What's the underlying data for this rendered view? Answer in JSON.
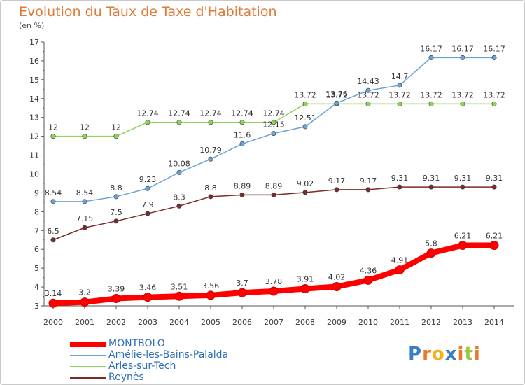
{
  "title": "Evolution du Taux de Taxe d'Habitation",
  "subtitle": "(en %)",
  "chart_data": {
    "type": "line",
    "x": [
      "2000",
      "2001",
      "2002",
      "2003",
      "2004",
      "2005",
      "2006",
      "2007",
      "2008",
      "2009",
      "2010",
      "2011",
      "2012",
      "2013",
      "2014"
    ],
    "ylim": [
      3,
      17
    ],
    "yticks": [
      3,
      4,
      5,
      6,
      7,
      8,
      9,
      10,
      11,
      12,
      13,
      14,
      15,
      16,
      17
    ],
    "grid": false,
    "legend_position": "bottom-left",
    "series": [
      {
        "name": "MONTBOLO",
        "color": "#ff0000",
        "values": [
          3.14,
          3.2,
          3.39,
          3.46,
          3.51,
          3.56,
          3.7,
          3.78,
          3.91,
          4.02,
          4.36,
          4.91,
          5.8,
          6.21,
          6.21
        ],
        "labels": [
          "3.14",
          "3.2",
          "3.39",
          "3.46",
          "3.51",
          "3.56",
          "3.7",
          "3.78",
          "3.91",
          "4.02",
          "4.36",
          "4.91",
          "5.8",
          "6.21",
          "6.21"
        ]
      },
      {
        "name": "Amélie-les-Bains-Palalda",
        "color": "#6aa3d5",
        "values": [
          8.54,
          8.54,
          8.8,
          9.23,
          10.08,
          10.79,
          11.6,
          12.15,
          12.51,
          13.76,
          14.43,
          14.7,
          16.17,
          16.17,
          16.17
        ],
        "labels": [
          "8.54",
          "8.54",
          "8.8",
          "9.23",
          "10.08",
          "10.79",
          "11.6",
          "12.15",
          "12.51",
          "13.76",
          "14.43",
          "14.7",
          "16.17",
          "16.17",
          "16.17"
        ]
      },
      {
        "name": "Arles-sur-Tech",
        "color": "#8fd35a",
        "values": [
          12,
          12,
          12,
          12.74,
          12.74,
          12.74,
          12.74,
          12.74,
          13.72,
          13.72,
          13.72,
          13.72,
          13.72,
          13.72,
          13.72
        ],
        "labels": [
          "12",
          "12",
          "12",
          "12.74",
          "12.74",
          "12.74",
          "12.74",
          "12.74",
          "13.72",
          "13.72",
          "13.72",
          "13.72",
          "13.72",
          "13.72",
          "13.72"
        ]
      },
      {
        "name": "Reynès",
        "color": "#7a2b2b",
        "values": [
          6.5,
          7.15,
          7.5,
          7.9,
          8.3,
          8.8,
          8.89,
          8.89,
          9.02,
          9.17,
          9.17,
          9.31,
          9.31,
          9.31,
          9.31
        ],
        "labels": [
          "6.5",
          "7.15",
          "7.5",
          "7.9",
          "8.3",
          "8.8",
          "8.89",
          "8.89",
          "9.02",
          "9.17",
          "9.17",
          "9.31",
          "9.31",
          "9.31",
          "9.31"
        ]
      }
    ]
  },
  "legend": {
    "items": [
      {
        "name": "MONTBOLO",
        "color": "#ff0000"
      },
      {
        "name": "Amélie-les-Bains-Palalda",
        "color": "#6aa3d5"
      },
      {
        "name": "Arles-sur-Tech",
        "color": "#8fd35a"
      },
      {
        "name": "Reynès",
        "color": "#7a2b2b"
      }
    ]
  },
  "logo": {
    "letters": [
      "P",
      "r",
      "o",
      "x",
      "i",
      "t",
      "i"
    ],
    "colors": [
      "#3a7ec8",
      "#e77b2a",
      "#f2b21b",
      "#3a7ec8",
      "#e77b2a",
      "#9bc53d",
      "#e77b2a"
    ]
  }
}
